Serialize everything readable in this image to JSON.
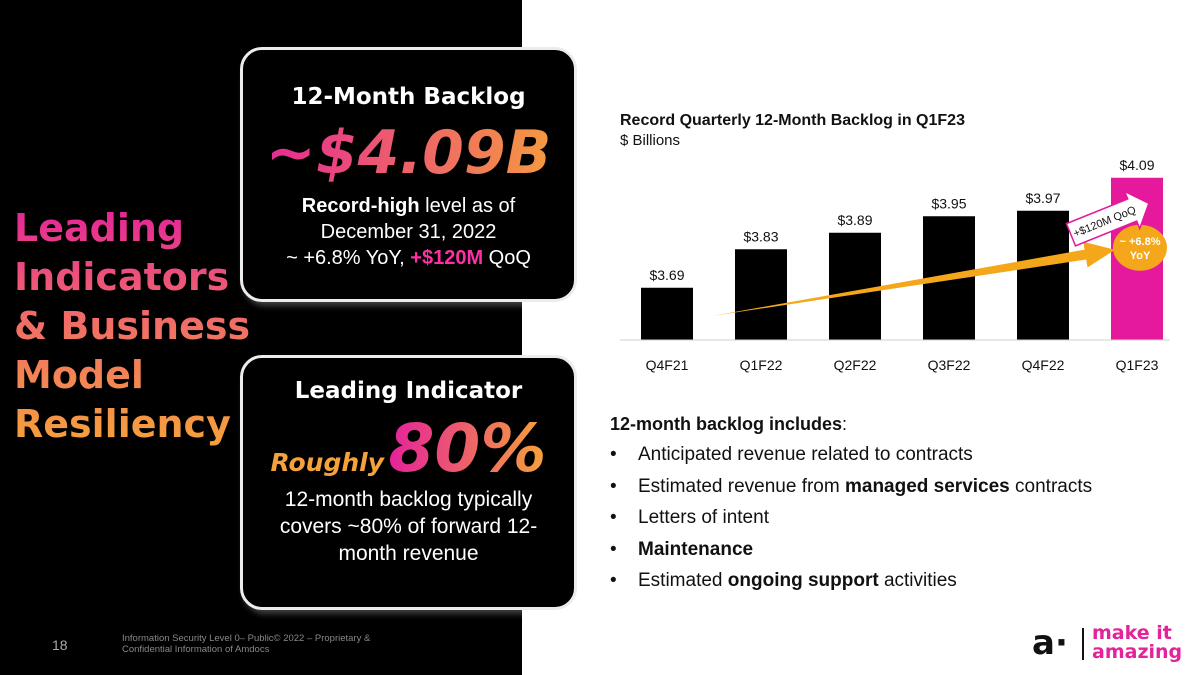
{
  "section": {
    "title_lines": [
      "Leading",
      "Indicators",
      "& Business",
      "Model",
      "Resiliency"
    ]
  },
  "card_backlog": {
    "heading": "12-Month Backlog",
    "value": "~$4.09B",
    "desc_bold": "Record-high",
    "desc_rest": " level as of",
    "desc_date": "December 31, 2022",
    "yoy": "~ +6.8% YoY, ",
    "qoq_value": "+$120M",
    "qoq_suffix": " QoQ"
  },
  "card_indicator": {
    "heading": "Leading Indicator",
    "roughly": "Roughly",
    "percent": "80%",
    "desc": "12-month backlog typically covers ~80% of forward 12-month revenue"
  },
  "footer": {
    "page_number": "18",
    "note": "Information Security Level 0– Public© 2022 – Proprietary & Confidential Information of Amdocs"
  },
  "chart_data": {
    "type": "bar",
    "title": "Record Quarterly 12-Month Backlog in Q1F23",
    "subtitle": "$ Billions",
    "categories": [
      "Q4F21",
      "Q1F22",
      "Q2F22",
      "Q3F22",
      "Q4F22",
      "Q1F23"
    ],
    "values": [
      3.69,
      3.83,
      3.89,
      3.95,
      3.97,
      4.09
    ],
    "value_labels": [
      "$3.69",
      "$3.83",
      "$3.89",
      "$3.95",
      "$3.97",
      "$4.09"
    ],
    "bar_colors": [
      "#000000",
      "#000000",
      "#000000",
      "#000000",
      "#000000",
      "#e4199b"
    ],
    "annotation_qoq": "+$120M QoQ",
    "annotation_yoy_lines": [
      "~ +6.8%",
      "YoY"
    ],
    "arrow_color": "#f5a71c",
    "ylim": [
      3.5,
      4.1
    ],
    "grid": false
  },
  "bullets": {
    "heading_bold": "12-month backlog includes",
    "heading_colon": ":",
    "items": [
      {
        "pre": "Anticipated revenue related to contracts",
        "bold": "",
        "post": ""
      },
      {
        "pre": "Estimated revenue from ",
        "bold": "managed services",
        "post": " contracts"
      },
      {
        "pre": "Letters of intent",
        "bold": "",
        "post": ""
      },
      {
        "pre": "",
        "bold": "Maintenance",
        "post": ""
      },
      {
        "pre": "Estimated ",
        "bold": "ongoing support",
        "post": " activities"
      }
    ]
  },
  "logo": {
    "mark": "a·",
    "word1": "make it",
    "word2": "amazing",
    "color": "#e4229a"
  }
}
